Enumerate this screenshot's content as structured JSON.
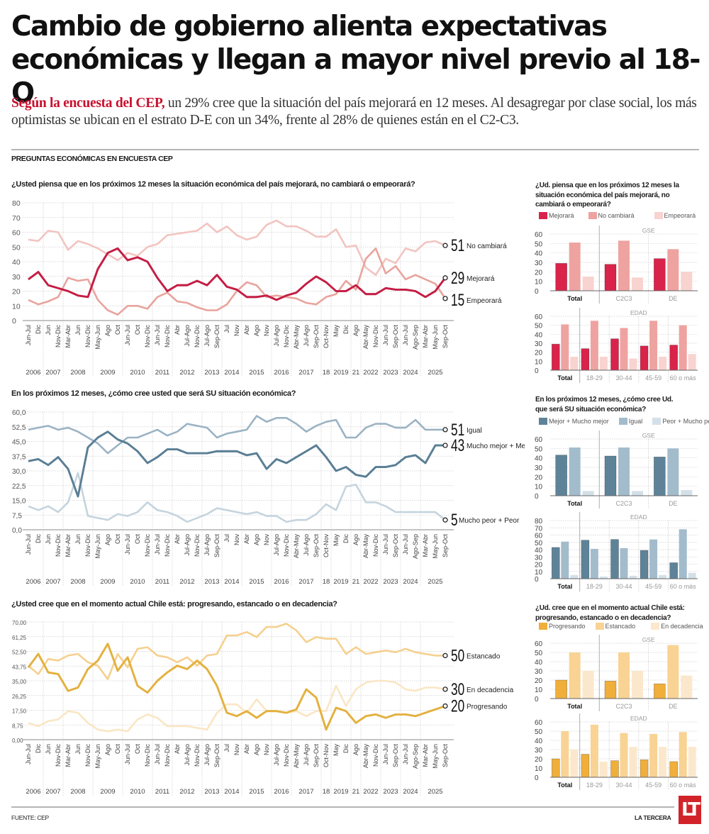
{
  "headline": "Cambio de gobierno alienta expectativas económicas y llegan a mayor nivel previo al 18-O",
  "lede": {
    "highlight": "Según la encuesta del CEP,",
    "text": " un 29% cree que la situación del país mejorará en 12 meses. Al desagregar por clase social, los más optimistas se ubican en el estrato D-E con un 34%, frente al 28% de quienes están en el C2-C3."
  },
  "section_label": "PREGUNTAS ECONÓMICAS EN ENCUESTA CEP",
  "footer": {
    "source": "FUENTE: CEP",
    "brand": "LA TERCERA",
    "logo": "LT"
  },
  "x_labels": [
    "Jun-Jul",
    "Dic",
    "Jun",
    "Nov-Dic",
    "Mar-Abr",
    "Jun",
    "Nov-Dic",
    "May-Jun",
    "Ago",
    "Oct",
    "Jun-Jul",
    "Oct",
    "Nov-Dic",
    "Jun-Jul",
    "Nov-Dic",
    "Abr",
    "Jul-Ago",
    "Nov-Dic",
    "Jul-Ago",
    "Sep-Oct",
    "Jul",
    "Nov",
    "Abr",
    "Ago",
    "Nov",
    "Jul-Ago",
    "Nov-Dic",
    "Abr-May",
    "Jul-Ago",
    "Sep-Oct",
    "Oct-Nov",
    "May",
    "Dic",
    "Ago",
    "Abr-May",
    "Nov-Dic",
    "Jun-Jul",
    "Sep-Oct",
    "Jun-Jul",
    "Ago-Sep",
    "Mar-Abr",
    "May-Jun",
    "Sep-Oct"
  ],
  "year_groups": [
    {
      "label": "2006",
      "start": 0,
      "end": 1
    },
    {
      "label": "2007",
      "start": 2,
      "end": 3
    },
    {
      "label": "2008",
      "start": 4,
      "end": 6
    },
    {
      "label": "2009",
      "start": 7,
      "end": 9
    },
    {
      "label": "2010",
      "start": 10,
      "end": 12
    },
    {
      "label": "2011",
      "start": 13,
      "end": 14
    },
    {
      "label": "2012",
      "start": 15,
      "end": 17
    },
    {
      "label": "2013",
      "start": 18,
      "end": 19
    },
    {
      "label": "2014",
      "start": 20,
      "end": 21
    },
    {
      "label": "2015",
      "start": 22,
      "end": 24
    },
    {
      "label": "2016",
      "start": 25,
      "end": 26
    },
    {
      "label": "2017",
      "start": 27,
      "end": 29
    },
    {
      "label": "18",
      "start": 30,
      "end": 30
    },
    {
      "label": "2019",
      "start": 31,
      "end": 32
    },
    {
      "label": "21",
      "start": 33,
      "end": 33
    },
    {
      "label": "2022",
      "start": 34,
      "end": 35
    },
    {
      "label": "2023",
      "start": 36,
      "end": 37
    },
    {
      "label": "2024",
      "start": 38,
      "end": 39
    },
    {
      "label": "2025",
      "start": 40,
      "end": 42
    }
  ],
  "chart_data": [
    {
      "type": "line",
      "title": "¿Usted piensa que en los próximos 12 meses la situación económica del país mejorará, no cambiará o empeorará?",
      "ylim": [
        0,
        80
      ],
      "yticks": [
        "0",
        "10",
        "20",
        "30",
        "40",
        "50",
        "60",
        "70",
        "80"
      ],
      "ytick_values": [
        0,
        10,
        20,
        30,
        40,
        50,
        60,
        70,
        80
      ],
      "grid": true,
      "series": [
        {
          "name": "No cambiará",
          "color": "#f2c4c0",
          "end_label": "51",
          "values": [
            55,
            54,
            61,
            60,
            48,
            54,
            52,
            49,
            45,
            41,
            46,
            44,
            50,
            52,
            58,
            59,
            60,
            61,
            66,
            60,
            64,
            58,
            55,
            57,
            65,
            68,
            64,
            64,
            61,
            57,
            57,
            62,
            50,
            51,
            36,
            31,
            42,
            39,
            49,
            47,
            53,
            54,
            51
          ]
        },
        {
          "name": "Mejorará",
          "color": "#c41e45",
          "end_label": "29",
          "values": [
            28,
            33,
            24,
            22,
            20,
            17,
            16,
            35,
            46,
            49,
            41,
            43,
            40,
            29,
            20,
            24,
            24,
            27,
            24,
            31,
            23,
            21,
            16,
            16,
            17,
            14,
            17,
            19,
            25,
            30,
            26,
            20,
            20,
            24,
            18,
            18,
            22,
            21,
            21,
            20,
            16,
            20,
            29
          ]
        },
        {
          "name": "Empeorará",
          "color": "#e8a49d",
          "end_label": "15",
          "values": [
            14,
            11,
            13,
            16,
            29,
            27,
            28,
            14,
            7,
            4,
            10,
            10,
            8,
            16,
            19,
            13,
            12,
            9,
            7,
            7,
            11,
            20,
            26,
            24,
            16,
            17,
            16,
            15,
            12,
            11,
            16,
            18,
            27,
            21,
            42,
            49,
            32,
            37,
            28,
            31,
            28,
            25,
            15
          ]
        }
      ]
    },
    {
      "type": "line",
      "title": "En los próximos 12 meses, ¿cómo cree usted que será SU situación económica?",
      "ylim": [
        0,
        60
      ],
      "yticks": [
        "0,0",
        "7,5",
        "15,0",
        "22,5",
        "30,0",
        "37,5",
        "45,0",
        "52,5",
        "60,0"
      ],
      "ytick_values": [
        0,
        7.5,
        15,
        22.5,
        30,
        37.5,
        45,
        52.5,
        60
      ],
      "grid": true,
      "series": [
        {
          "name": "Igual",
          "color": "#9bb3c4",
          "end_label": "51",
          "values": [
            51,
            52,
            53,
            51,
            52,
            50,
            47,
            44,
            39,
            43,
            47,
            47,
            49,
            51,
            48,
            50,
            54,
            53,
            52,
            47,
            49,
            50,
            51,
            58,
            55,
            57,
            57,
            54,
            50,
            53,
            55,
            56,
            47,
            47,
            52,
            54,
            54,
            52,
            52,
            56,
            51,
            51,
            51
          ]
        },
        {
          "name": "Mucho mejor + Mejor",
          "color": "#5a7e95",
          "end_label": "43",
          "values": [
            35,
            36,
            33,
            37,
            31,
            17,
            42,
            47,
            50,
            46,
            44,
            40,
            34,
            37,
            41,
            41,
            39,
            39,
            39,
            40,
            40,
            40,
            38,
            39,
            31,
            36,
            34,
            37,
            40,
            43,
            37,
            30,
            32,
            28,
            27,
            32,
            32,
            33,
            37,
            38,
            34,
            43,
            43
          ]
        },
        {
          "name": "Mucho peor + Peor",
          "color": "#c5d4de",
          "end_label": "5",
          "values": [
            12,
            10,
            12,
            9,
            14,
            29,
            7,
            6,
            5,
            8,
            7,
            9,
            14,
            10,
            9,
            7,
            4,
            6,
            8,
            11,
            10,
            9,
            8,
            9,
            7,
            7,
            4,
            5,
            5,
            8,
            13,
            10,
            22,
            23,
            14,
            14,
            12,
            9,
            9,
            9,
            9,
            9,
            5
          ]
        }
      ]
    },
    {
      "type": "line",
      "title": "¿Usted cree que en el momento actual Chile está: progresando, estancado o en decadencia?",
      "ylim": [
        0,
        70
      ],
      "yticks": [
        "0,00",
        "8,75",
        "17,50",
        "26,25",
        "35,00",
        "43,75",
        "52,50",
        "61,25",
        "70,00"
      ],
      "ytick_values": [
        0,
        8.75,
        17.5,
        26.25,
        35,
        43.75,
        52.5,
        61.25,
        70
      ],
      "grid": true,
      "series": [
        {
          "name": "Estancado",
          "color": "#f5d08f",
          "end_label": "50",
          "values": [
            44,
            39,
            48,
            47,
            50,
            51,
            46,
            44,
            36,
            51,
            43,
            54,
            55,
            50,
            49,
            46,
            49,
            44,
            50,
            51,
            62,
            62,
            64,
            61,
            67,
            67,
            69,
            65,
            58,
            61,
            60,
            60,
            51,
            55,
            51,
            52,
            53,
            52,
            54,
            52,
            51,
            50,
            50
          ]
        },
        {
          "name": "Progresando",
          "color": "#e3b13f",
          "end_label": "20",
          "values": [
            43,
            51,
            40,
            39,
            29,
            31,
            42,
            47,
            57,
            41,
            49,
            32,
            28,
            35,
            40,
            44,
            42,
            47,
            42,
            32,
            16,
            14,
            17,
            13,
            17,
            17,
            16,
            18,
            30,
            25,
            6,
            19,
            17,
            10,
            14,
            15,
            13,
            15,
            15,
            14,
            16,
            18,
            20
          ]
        },
        {
          "name": "En decadencia",
          "color": "#fae6c4",
          "end_label": "30",
          "values": [
            10,
            8,
            11,
            12,
            17,
            16,
            10,
            6,
            5,
            6,
            5,
            12,
            15,
            13,
            8,
            8,
            8,
            7,
            6,
            16,
            21,
            21,
            16,
            24,
            17,
            17,
            16,
            17,
            14,
            17,
            17,
            32,
            20,
            30,
            34,
            35,
            35,
            34,
            30,
            29,
            31,
            31,
            30
          ]
        }
      ]
    },
    {
      "type": "bar",
      "title": "¿Ud. piensa que en los próximos 12 meses la situación económica del país mejorará, no cambiará o empeorará?",
      "legend": [
        "Mejorará",
        "No cambiará",
        "Empeorará"
      ],
      "colors": [
        "#d9234a",
        "#eea3a0",
        "#f8d3cf"
      ],
      "panels": [
        {
          "name": "GSE",
          "ylim": [
            0,
            60
          ],
          "yticks": [
            0,
            10,
            20,
            30,
            40,
            50,
            60
          ],
          "categories": [
            "Total",
            "C2C3",
            "DE"
          ],
          "series": [
            {
              "name": "Mejorará",
              "values": [
                29,
                28,
                34
              ]
            },
            {
              "name": "No cambiará",
              "values": [
                51,
                53,
                44
              ]
            },
            {
              "name": "Empeorará",
              "values": [
                15,
                14,
                20
              ]
            }
          ]
        },
        {
          "name": "EDAD",
          "ylim": [
            0,
            60
          ],
          "yticks": [
            0,
            10,
            20,
            30,
            40,
            50,
            60
          ],
          "categories": [
            "Total",
            "18-29",
            "30-44",
            "45-59",
            "60 o más"
          ],
          "series": [
            {
              "name": "Mejorará",
              "values": [
                29,
                24,
                35,
                27,
                28
              ]
            },
            {
              "name": "No cambiará",
              "values": [
                51,
                55,
                47,
                55,
                50
              ]
            },
            {
              "name": "Empeorará",
              "values": [
                15,
                15,
                13,
                15,
                18
              ]
            }
          ]
        }
      ]
    },
    {
      "type": "bar",
      "title": "En los próximos 12 meses, ¿cómo cree Ud. que será SU situación económica?",
      "legend": [
        "Mejor + Mucho mejor",
        "Igual",
        "Peor + Mucho peor"
      ],
      "colors": [
        "#5e8399",
        "#a3bccc",
        "#d3e0e8"
      ],
      "panels": [
        {
          "name": "GSE",
          "ylim": [
            0,
            60
          ],
          "yticks": [
            0,
            10,
            20,
            30,
            40,
            50,
            60
          ],
          "categories": [
            "Total",
            "C2C3",
            "DE"
          ],
          "series": [
            {
              "name": "Mejor + Mucho mejor",
              "values": [
                43,
                42,
                41
              ]
            },
            {
              "name": "Igual",
              "values": [
                51,
                51,
                50
              ]
            },
            {
              "name": "Peor + Mucho peor",
              "values": [
                5,
                5,
                6
              ]
            }
          ]
        },
        {
          "name": "EDAD",
          "ylim": [
            0,
            80
          ],
          "yticks": [
            0,
            10,
            20,
            30,
            40,
            50,
            60,
            70,
            80
          ],
          "categories": [
            "Total",
            "18-29",
            "30-44",
            "45-59",
            "60 o más"
          ],
          "series": [
            {
              "name": "Mejor + Mucho mejor",
              "values": [
                43,
                53,
                54,
                39,
                22
              ]
            },
            {
              "name": "Igual",
              "values": [
                51,
                41,
                42,
                54,
                68
              ]
            },
            {
              "name": "Peor + Mucho peor",
              "values": [
                5,
                3,
                4,
                5,
                8
              ]
            }
          ]
        }
      ]
    },
    {
      "type": "bar",
      "title": "¿Ud. cree que en el momento actual Chile está: progresando, estancado o en decadencia?",
      "legend": [
        "Progresando",
        "Estancado",
        "En decadencia"
      ],
      "colors": [
        "#f0ae3a",
        "#f8d394",
        "#fbe8cc"
      ],
      "panels": [
        {
          "name": "GSE",
          "ylim": [
            0,
            60
          ],
          "yticks": [
            0,
            10,
            20,
            30,
            40,
            50,
            60
          ],
          "categories": [
            "Total",
            "C2C3",
            "DE"
          ],
          "series": [
            {
              "name": "Progresando",
              "values": [
                20,
                19,
                16
              ]
            },
            {
              "name": "Estancado",
              "values": [
                50,
                50,
                58
              ]
            },
            {
              "name": "En decadencia",
              "values": [
                30,
                30,
                25
              ]
            }
          ]
        },
        {
          "name": "EDAD",
          "ylim": [
            0,
            60
          ],
          "yticks": [
            0,
            10,
            20,
            30,
            40,
            50,
            60
          ],
          "categories": [
            "Total",
            "18-29",
            "30-44",
            "45-59",
            "60 o más"
          ],
          "series": [
            {
              "name": "Progresando",
              "values": [
                20,
                25,
                18,
                19,
                17
              ]
            },
            {
              "name": "Estancado",
              "values": [
                50,
                57,
                48,
                47,
                49
              ]
            },
            {
              "name": "En decadencia",
              "values": [
                30,
                17,
                33,
                33,
                33
              ]
            }
          ]
        }
      ]
    }
  ]
}
